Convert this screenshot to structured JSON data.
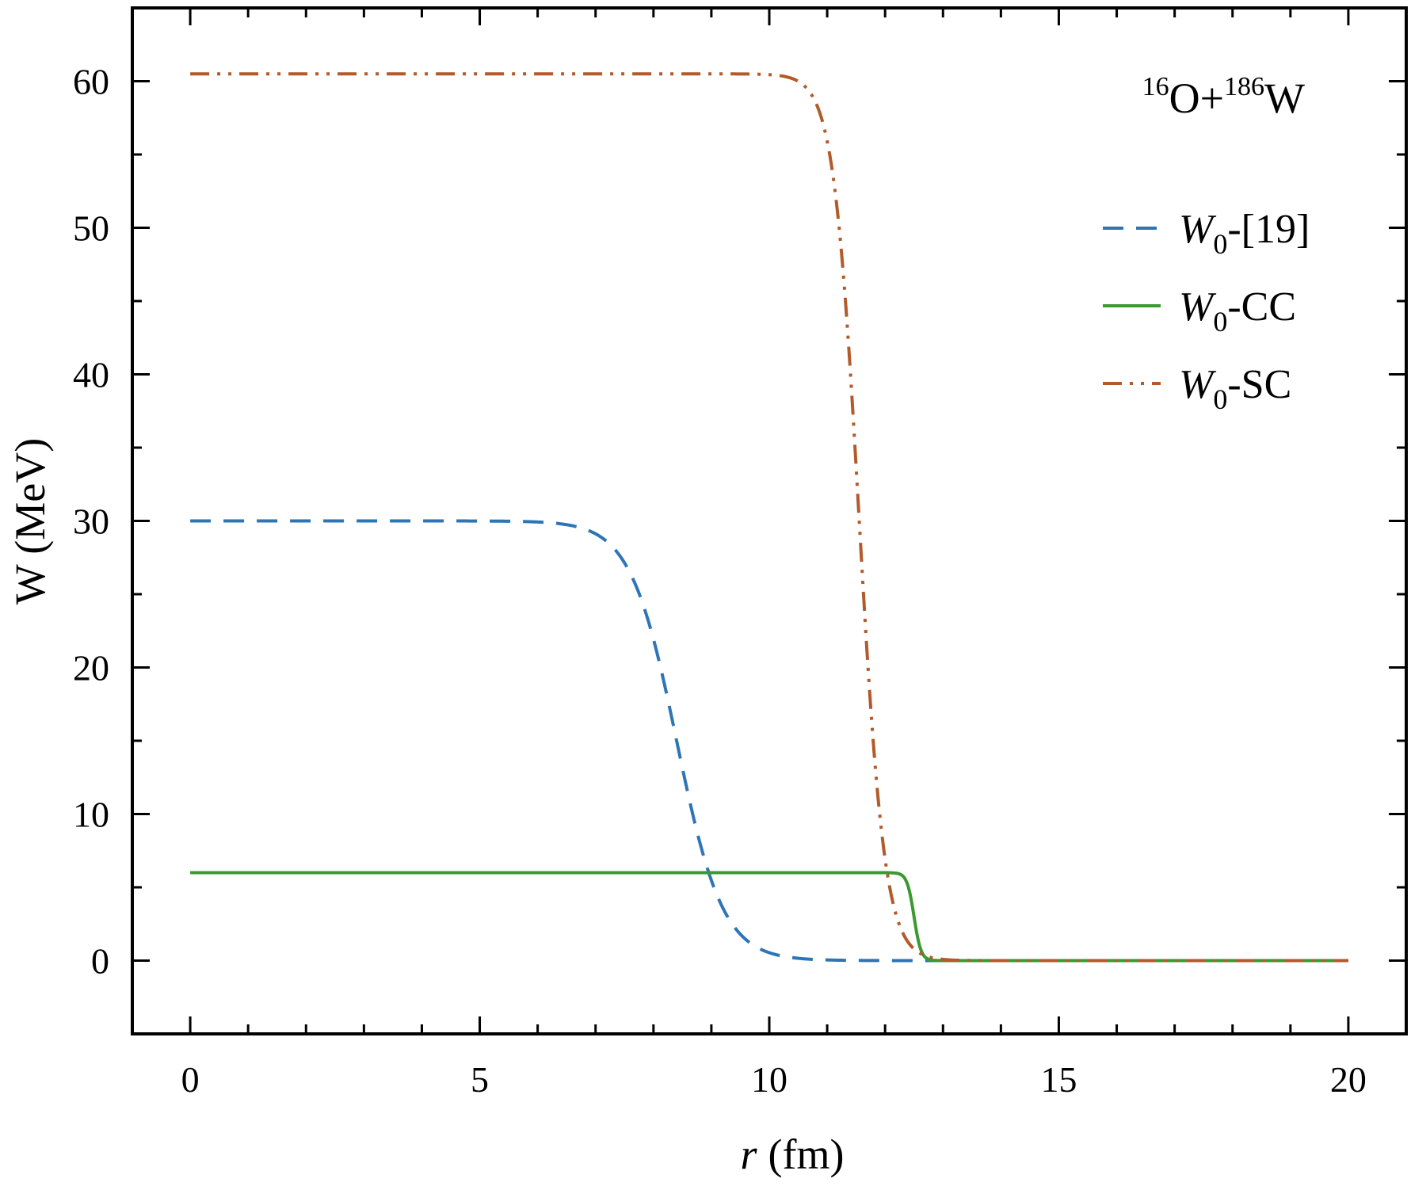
{
  "chart_data": {
    "type": "line",
    "xlabel": {
      "var": "r",
      "unit": "(fm)"
    },
    "ylabel": "W (MeV)",
    "xlim": [
      -1,
      21
    ],
    "ylim": [
      -5,
      65
    ],
    "xticks": [
      0,
      5,
      10,
      15,
      20
    ],
    "yticks": [
      0,
      10,
      20,
      30,
      40,
      50,
      60
    ],
    "x_minor_step": 1,
    "y_minor_step": 5,
    "grid": false,
    "legend_position": "right",
    "annotation": {
      "mass_a": "16",
      "elem_a": "O+",
      "mass_b": "186",
      "elem_b": "W"
    },
    "series": [
      {
        "name": "W0-[19]",
        "label_main": "W",
        "label_sub": "0",
        "label_rest": "-[19]",
        "color": "#2e75b6",
        "dash": "dash",
        "depth": 30,
        "radius": 8.4,
        "diffuseness": 0.4,
        "x_range": [
          0,
          20
        ]
      },
      {
        "name": "W0-CC",
        "label_main": "W",
        "label_sub": "0",
        "label_rest": "-CC",
        "color": "#3a9a2f",
        "dash": "solid",
        "depth": 6,
        "radius": 12.5,
        "diffuseness": 0.06,
        "x_range": [
          0,
          20
        ]
      },
      {
        "name": "W0-SC",
        "label_main": "W",
        "label_sub": "0",
        "label_rest": "-SC",
        "color": "#b35a2a",
        "dash": "dash-dot-dot",
        "depth": 60.5,
        "radius": 11.55,
        "diffuseness": 0.22,
        "x_range": [
          0,
          20
        ]
      }
    ]
  }
}
